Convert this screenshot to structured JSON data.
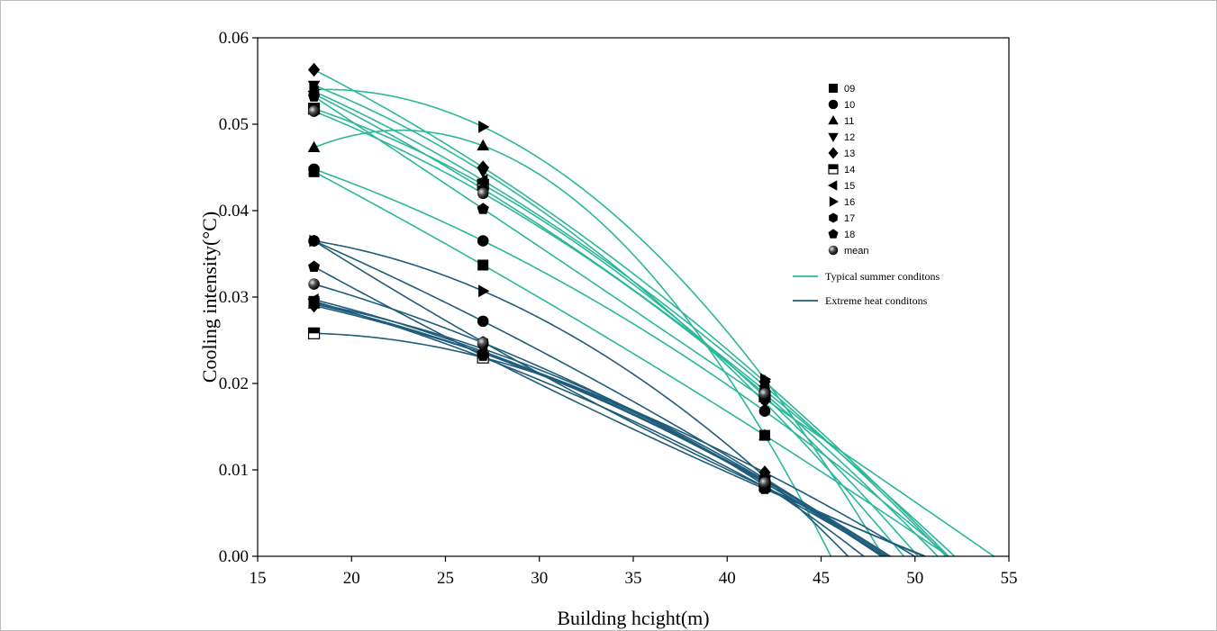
{
  "chart_data": {
    "type": "line",
    "xlabel": "Building hcight(m)",
    "ylabel": "Cooling intensity(°C)",
    "xlim": [
      15,
      55
    ],
    "ylim": [
      0,
      0.06
    ],
    "x_ticks": [
      15,
      20,
      25,
      30,
      35,
      40,
      45,
      50,
      55
    ],
    "y_ticks": [
      "0.00",
      "0.01",
      "0.02",
      "0.03",
      "0.04",
      "0.05",
      "0.06"
    ],
    "x": [
      18,
      27,
      42
    ],
    "colors": {
      "typical": "#2bb79a",
      "extreme": "#1f5c7a"
    },
    "legend_markers": [
      {
        "label": "09",
        "marker": "square"
      },
      {
        "label": "10",
        "marker": "circle"
      },
      {
        "label": "11",
        "marker": "triangle-up"
      },
      {
        "label": "12",
        "marker": "triangle-down"
      },
      {
        "label": "13",
        "marker": "diamond"
      },
      {
        "label": "14",
        "marker": "half-square"
      },
      {
        "label": "15",
        "marker": "triangle-left"
      },
      {
        "label": "16",
        "marker": "triangle-right"
      },
      {
        "label": "17",
        "marker": "hexagon"
      },
      {
        "label": "18",
        "marker": "pentagon"
      },
      {
        "label": "mean",
        "marker": "sphere"
      }
    ],
    "legend_lines": [
      {
        "label": "Typical summer conditons",
        "group": "typical"
      },
      {
        "label": "Extreme heat conditons",
        "group": "extreme"
      }
    ],
    "series": [
      {
        "hour": "09",
        "group": "typical",
        "marker": "square",
        "values": [
          0.0445,
          0.0337,
          0.014
        ]
      },
      {
        "hour": "10",
        "group": "typical",
        "marker": "circle",
        "values": [
          0.0448,
          0.0365,
          0.0168
        ]
      },
      {
        "hour": "11",
        "group": "typical",
        "marker": "triangle-up",
        "values": [
          0.0473,
          0.0475,
          0.014
        ]
      },
      {
        "hour": "12",
        "group": "typical",
        "marker": "triangle-down",
        "values": [
          0.0545,
          0.0445,
          0.0178
        ]
      },
      {
        "hour": "13",
        "group": "typical",
        "marker": "diamond",
        "values": [
          0.0563,
          0.045,
          0.0202
        ]
      },
      {
        "hour": "14",
        "group": "typical",
        "marker": "half-square",
        "values": [
          0.0518,
          0.043,
          0.0185
        ]
      },
      {
        "hour": "15",
        "group": "typical",
        "marker": "triangle-left",
        "values": [
          0.0538,
          0.0435,
          0.0197
        ]
      },
      {
        "hour": "16",
        "group": "typical",
        "marker": "triangle-right",
        "values": [
          0.054,
          0.0497,
          0.0205
        ]
      },
      {
        "hour": "17",
        "group": "typical",
        "marker": "hexagon",
        "values": [
          0.0535,
          0.0425,
          0.0192
        ]
      },
      {
        "hour": "18",
        "group": "typical",
        "marker": "pentagon",
        "values": [
          0.0532,
          0.0402,
          0.0182
        ]
      },
      {
        "hour": "mean",
        "group": "typical",
        "marker": "sphere",
        "values": [
          0.0515,
          0.042,
          0.0188
        ]
      },
      {
        "hour": "09",
        "group": "extreme",
        "marker": "square",
        "values": [
          0.0295,
          0.023,
          0.008
        ]
      },
      {
        "hour": "10",
        "group": "extreme",
        "marker": "circle",
        "values": [
          0.0365,
          0.0272,
          0.009
        ]
      },
      {
        "hour": "11",
        "group": "extreme",
        "marker": "triangle-up",
        "values": [
          0.0292,
          0.0235,
          0.0085
        ]
      },
      {
        "hour": "12",
        "group": "extreme",
        "marker": "triangle-down",
        "values": [
          0.0293,
          0.024,
          0.0088
        ]
      },
      {
        "hour": "13",
        "group": "extreme",
        "marker": "diamond",
        "values": [
          0.029,
          0.0235,
          0.0097
        ]
      },
      {
        "hour": "14",
        "group": "extreme",
        "marker": "half-square",
        "values": [
          0.0258,
          0.023,
          0.0082
        ]
      },
      {
        "hour": "15",
        "group": "extreme",
        "marker": "triangle-left",
        "values": [
          0.0297,
          0.0237,
          0.0087
        ]
      },
      {
        "hour": "16",
        "group": "extreme",
        "marker": "triangle-right",
        "values": [
          0.0365,
          0.0307,
          0.0092
        ]
      },
      {
        "hour": "17",
        "group": "extreme",
        "marker": "hexagon",
        "values": [
          0.0365,
          0.0248,
          0.008
        ]
      },
      {
        "hour": "18",
        "group": "extreme",
        "marker": "pentagon",
        "values": [
          0.0335,
          0.0232,
          0.0078
        ]
      },
      {
        "hour": "mean",
        "group": "extreme",
        "marker": "sphere",
        "values": [
          0.0315,
          0.0247,
          0.0085
        ]
      }
    ]
  }
}
